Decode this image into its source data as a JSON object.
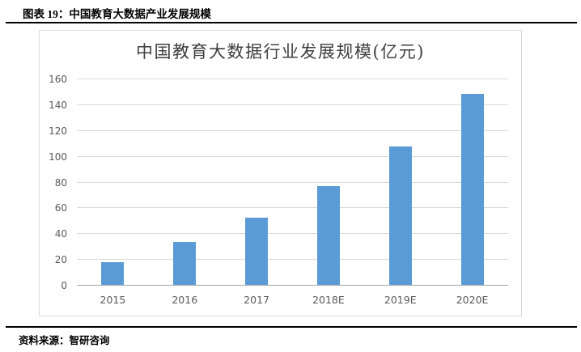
{
  "figure": {
    "caption": "图表 19：中国教育大数据产业发展规模",
    "source": "资料来源：智研咨询"
  },
  "chart_data": {
    "type": "bar",
    "title": "中国教育大数据行业发展规模(亿元)",
    "categories": [
      "2015",
      "2016",
      "2017",
      "2018E",
      "2019E",
      "2020E"
    ],
    "values": [
      18,
      34,
      53,
      77,
      108,
      149
    ],
    "xlabel": "",
    "ylabel": "",
    "ylim": [
      0,
      160
    ],
    "ytick_step": 20,
    "grid": true,
    "legend": "none",
    "bar_color": "#5b9bd5",
    "gridline_color": "#d9d9d9",
    "baseline_color": "#a6a6a6",
    "axis_text_color": "#595959",
    "title_color": "#404040"
  }
}
